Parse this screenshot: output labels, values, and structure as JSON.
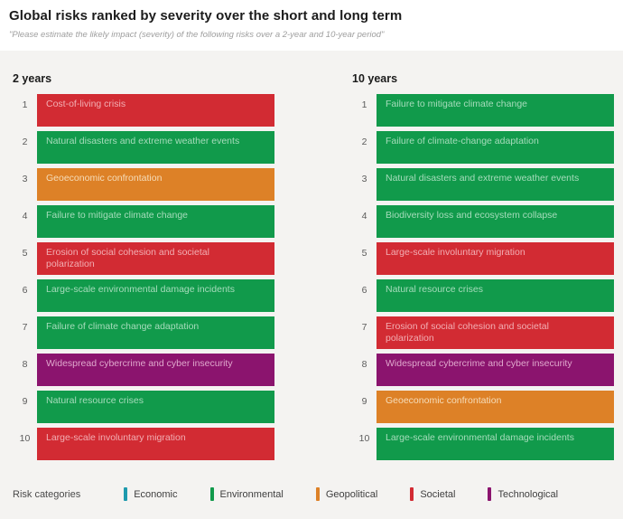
{
  "chart_data": {
    "type": "table",
    "title": "Global risks ranked by severity over the short and long term",
    "subtitle": "\"Please estimate the likely impact (severity) of the following risks over a 2-year and 10-year period\"",
    "colors": {
      "page_bg": "#FFFFFF",
      "panel_bg": "#F4F3F1"
    },
    "categories": {
      "Economic": {
        "color": "#1E9AAD",
        "label_color": "#BFE6EC"
      },
      "Environmental": {
        "color": "#119A4B",
        "label_color": "#A6DCBB"
      },
      "Geopolitical": {
        "color": "#DD8127",
        "label_color": "#F6DDBA"
      },
      "Societal": {
        "color": "#D22B33",
        "label_color": "#F2AEB3"
      },
      "Technological": {
        "color": "#8B146E",
        "label_color": "#E0A8CD"
      }
    },
    "columns": [
      {
        "label": "2 years",
        "ranking": [
          {
            "rank": 1,
            "risk": "Cost-of-living crisis",
            "category": "Societal"
          },
          {
            "rank": 2,
            "risk": "Natural disasters and extreme weather events",
            "category": "Environmental"
          },
          {
            "rank": 3,
            "risk": "Geoeconomic confrontation",
            "category": "Geopolitical"
          },
          {
            "rank": 4,
            "risk": "Failure to mitigate climate change",
            "category": "Environmental"
          },
          {
            "rank": 5,
            "risk": "Erosion of social cohesion and societal polarization",
            "category": "Societal"
          },
          {
            "rank": 6,
            "risk": "Large-scale environmental damage incidents",
            "category": "Environmental"
          },
          {
            "rank": 7,
            "risk": "Failure of climate change adaptation",
            "category": "Environmental"
          },
          {
            "rank": 8,
            "risk": "Widespread cybercrime and cyber insecurity",
            "category": "Technological"
          },
          {
            "rank": 9,
            "risk": "Natural resource crises",
            "category": "Environmental"
          },
          {
            "rank": 10,
            "risk": "Large-scale involuntary migration",
            "category": "Societal"
          }
        ]
      },
      {
        "label": "10 years",
        "ranking": [
          {
            "rank": 1,
            "risk": "Failure to mitigate climate change",
            "category": "Environmental"
          },
          {
            "rank": 2,
            "risk": "Failure of climate-change adaptation",
            "category": "Environmental"
          },
          {
            "rank": 3,
            "risk": "Natural disasters and extreme weather events",
            "category": "Environmental"
          },
          {
            "rank": 4,
            "risk": "Biodiversity loss and ecosystem collapse",
            "category": "Environmental"
          },
          {
            "rank": 5,
            "risk": "Large-scale involuntary migration",
            "category": "Societal"
          },
          {
            "rank": 6,
            "risk": "Natural resource crises",
            "category": "Environmental"
          },
          {
            "rank": 7,
            "risk": "Erosion of social cohesion and societal polarization",
            "category": "Societal"
          },
          {
            "rank": 8,
            "risk": "Widespread cybercrime and cyber insecurity",
            "category": "Technological"
          },
          {
            "rank": 9,
            "risk": "Geoeconomic confrontation",
            "category": "Geopolitical"
          },
          {
            "rank": 10,
            "risk": "Large-scale environmental damage incidents",
            "category": "Environmental"
          }
        ]
      }
    ],
    "legend": {
      "label": "Risk categories",
      "order": [
        "Economic",
        "Environmental",
        "Geopolitical",
        "Societal",
        "Technological"
      ]
    }
  }
}
